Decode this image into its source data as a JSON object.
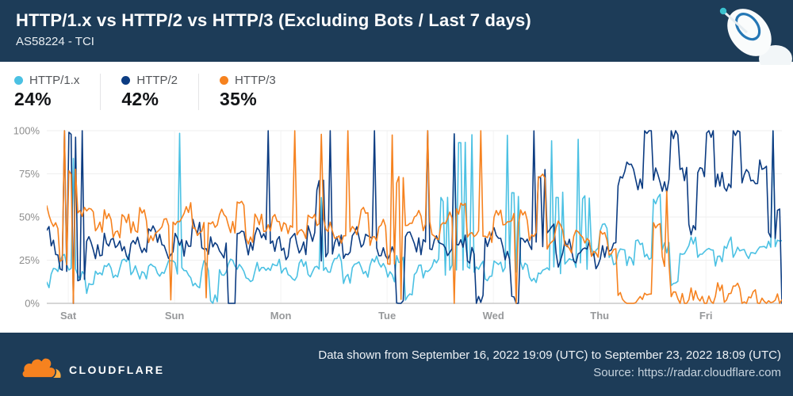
{
  "header": {
    "title": "HTTP/1.x vs HTTP/2 vs HTTP/3 (Excluding Bots / Last 7 days)",
    "subtitle": "AS58224 - TCI"
  },
  "legend": {
    "items": [
      {
        "id": "http1x",
        "label": "HTTP/1.x",
        "value": "24%",
        "color": "#4BC1E3"
      },
      {
        "id": "http2",
        "label": "HTTP/2",
        "value": "42%",
        "color": "#0C3C82"
      },
      {
        "id": "http3",
        "label": "HTTP/3",
        "value": "35%",
        "color": "#F6821F"
      }
    ]
  },
  "chart_data": {
    "type": "line",
    "title": "HTTP/1.x vs HTTP/2 vs HTTP/3 (Excluding Bots / Last 7 days)",
    "subtitle": "AS58224 - TCI",
    "unit": "%",
    "ylim": [
      0,
      100
    ],
    "y_ticks": [
      100,
      75,
      50,
      25,
      0
    ],
    "y_tick_labels": [
      "100%",
      "75%",
      "50%",
      "25%",
      "0%"
    ],
    "x_tick_labels": [
      "Sat",
      "Sun",
      "Mon",
      "Tue",
      "Wed",
      "Thu",
      "Fri"
    ],
    "x_tick_hours": [
      4.85,
      28.85,
      52.85,
      76.85,
      100.85,
      124.85,
      148.85
    ],
    "time_start": "September 16, 2022 19:09 (UTC)",
    "time_end": "September 23, 2022 18:09 (UTC)",
    "total_hours": 166,
    "sample_interval_hours": 2,
    "grid": true,
    "legend_position": "top-left",
    "series": [
      {
        "id": "http1x",
        "name": "HTTP/1.x",
        "color": "#4BC1E3",
        "average": "24%",
        "values": [
          12,
          20,
          25,
          87,
          15,
          8,
          18,
          22,
          17,
          25,
          20,
          15,
          24,
          18,
          22,
          97,
          18,
          12,
          22,
          3,
          18,
          25,
          20,
          15,
          22,
          18,
          25,
          20,
          15,
          23,
          18,
          60,
          20,
          25,
          15,
          22,
          18,
          24,
          20,
          15,
          25,
          5,
          20,
          16,
          24,
          18,
          97,
          20,
          95,
          22,
          15,
          25,
          100,
          18,
          22,
          15,
          20,
          97,
          16,
          25,
          95,
          20,
          30,
          45,
          25,
          30,
          25,
          35,
          28,
          60,
          32,
          12,
          30,
          35,
          28,
          32,
          25,
          35,
          30,
          28,
          28,
          32,
          100,
          35
        ]
      },
      {
        "id": "http2",
        "name": "HTTP/2",
        "color": "#0C3C82",
        "average": "42%",
        "values": [
          40,
          33,
          100,
          0,
          100,
          36,
          30,
          38,
          33,
          28,
          36,
          30,
          42,
          35,
          30,
          38,
          32,
          45,
          28,
          35,
          30,
          0,
          38,
          32,
          40,
          100,
          35,
          30,
          38,
          33,
          40,
          28,
          100,
          35,
          30,
          42,
          36,
          100,
          32,
          28,
          0,
          38,
          33,
          100,
          36,
          30,
          100,
          35,
          28,
          0,
          36,
          42,
          30,
          0,
          38,
          100,
          32,
          45,
          25,
          35,
          28,
          32,
          25,
          30,
          35,
          72,
          78,
          70,
          100,
          74,
          68,
          100,
          75,
          42,
          78,
          100,
          72,
          68,
          100,
          74,
          70,
          78,
          100,
          0
        ]
      },
      {
        "id": "http3",
        "name": "HTTP/3",
        "color": "#F6821F",
        "average": "35%",
        "values": [
          55,
          46,
          100,
          0,
          52,
          57,
          44,
          51,
          40,
          48,
          44,
          52,
          38,
          45,
          2,
          48,
          55,
          40,
          0,
          46,
          52,
          44,
          60,
          38,
          48,
          42,
          50,
          44,
          100,
          40,
          52,
          100,
          45,
          38,
          100,
          42,
          55,
          35,
          48,
          100,
          0,
          45,
          52,
          100,
          40,
          48,
          0,
          55,
          42,
          100,
          38,
          50,
          45,
          0,
          52,
          40,
          75,
          35,
          46,
          30,
          42,
          35,
          28,
          40,
          32,
          3,
          2,
          4,
          2,
          45,
          65,
          3,
          2,
          5,
          3,
          2,
          8,
          3,
          10,
          2,
          4,
          2,
          3,
          2
        ]
      }
    ],
    "render": {
      "upsample": 4,
      "jitter": [
        3.5,
        5,
        4
      ],
      "seed": 20220923,
      "spike_threshold": 38
    }
  },
  "footer": {
    "brand": "CLOUDFLARE",
    "date_range": "Data shown from September 16, 2022 19:09 (UTC) to September 23, 2022 18:09 (UTC)",
    "source": "Source: https://radar.cloudflare.com"
  },
  "colors": {
    "header_bg": "#1D3C58",
    "footer_bg": "#1D3C58",
    "grid_line": "#EFEFEF",
    "day_grid_line": "#F3F3F3",
    "baseline": "#D6D6D6",
    "axis_text": "#8D8D8D",
    "day_text": "#97999B"
  },
  "icons": {
    "header_icon": "radar-dish-icon",
    "footer_icon": "cloudflare-cloud-icon"
  }
}
